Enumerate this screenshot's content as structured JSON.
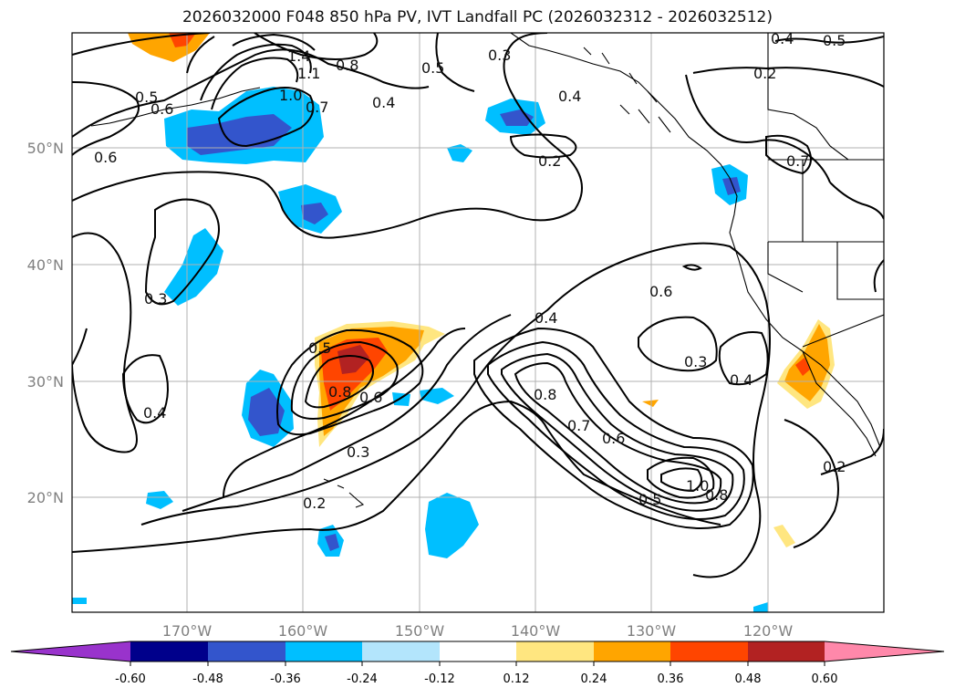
{
  "title": "2026032000 F048 850 hPa PV, IVT Landfall PC (2026032312 - 2026032512)",
  "colors": {
    "coast": "#000000",
    "grid": "#b0b0b0",
    "contour": "#000000",
    "axis_label": "#808080"
  },
  "lat_labels": [
    "50°N",
    "40°N",
    "30°N",
    "20°N"
  ],
  "lon_labels": [
    "170°W",
    "160°W",
    "150°W",
    "140°W",
    "130°W",
    "120°W"
  ],
  "contour_labels": [
    "1.4",
    "1.1",
    "1.0",
    "0.7",
    "0.8",
    "0.5",
    "0.3",
    "0.4",
    "0.4",
    "0.5",
    "0.2",
    "0.5",
    "0.6",
    "0.6",
    "0.2",
    "0.7",
    "0.3",
    "0.4",
    "0.6",
    "0.3",
    "0.4",
    "0.5",
    "0.8",
    "0.6",
    "0.3",
    "0.8",
    "0.7",
    "0.6",
    "0.2",
    "0.5",
    "1.0",
    "0.8",
    "0.2"
  ],
  "colorbar": {
    "levels": [
      "-0.60",
      "-0.48",
      "-0.36",
      "-0.24",
      "-0.12",
      "0.12",
      "0.24",
      "0.36",
      "0.48",
      "0.60"
    ],
    "colors": [
      "#9933cc",
      "#00008b",
      "#3355cc",
      "#00bfff",
      "#b3e5fc",
      "#ffffff",
      "#ffe680",
      "#ffa500",
      "#ff4500",
      "#b22222",
      "#ff88aa"
    ]
  }
}
